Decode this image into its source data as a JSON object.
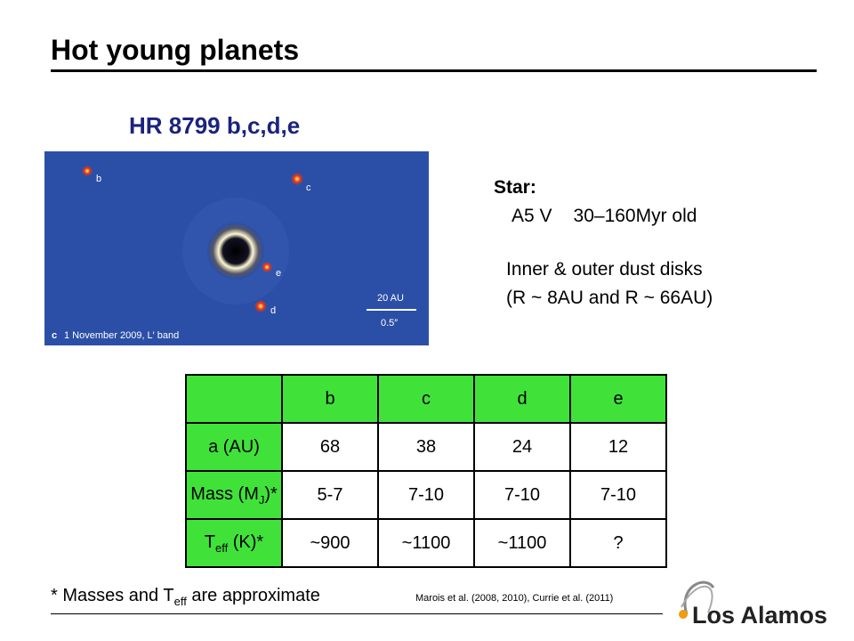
{
  "header": {
    "title": "Hot young planets",
    "subtitle": "HR 8799 b,c,d,e"
  },
  "image": {
    "planet_labels": [
      "b",
      "c",
      "d",
      "e"
    ],
    "scale_top": "20 AU",
    "scale_bottom": "0.5″",
    "panel": "c",
    "caption": "1 November 2009, L′ band"
  },
  "star": {
    "heading": "Star:",
    "type": "A5 V",
    "age": "30–160Myr old",
    "disks": "Inner & outer dust disks",
    "radii": "(R ~ 8AU and R ~ 66AU)"
  },
  "table": {
    "header": [
      "b",
      "c",
      "d",
      "e"
    ],
    "rows": [
      {
        "label": [
          "a (AU)"
        ],
        "cells": [
          "68",
          "38",
          "24",
          "12"
        ]
      },
      {
        "label": [
          "Mass (M",
          "J",
          ")*"
        ],
        "cells": [
          "5-7",
          "7-10",
          "7-10",
          "7-10"
        ]
      },
      {
        "label": [
          "T",
          "eff",
          " (K)*"
        ],
        "cells": [
          "~900",
          "~1100",
          "~1100",
          "?"
        ]
      }
    ]
  },
  "footnote": {
    "parts": [
      "* Masses and T",
      "eff",
      " are approximate"
    ],
    "citation": "Marois et al. (2008, 2010), Currie et al. (2011)"
  },
  "logo": "Los Alamos"
}
